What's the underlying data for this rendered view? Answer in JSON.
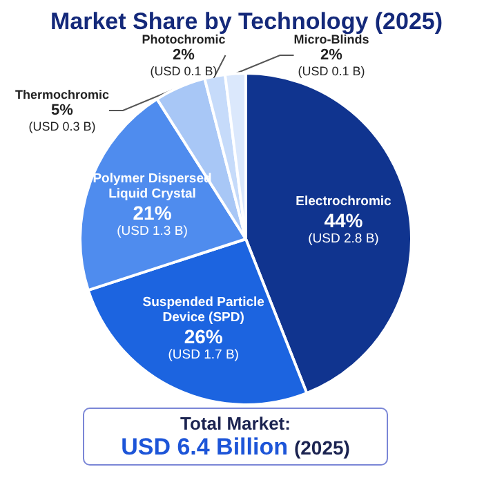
{
  "chart_data": {
    "type": "pie",
    "title": "Market Share by Technology (2025)",
    "categories": [
      "Electrochromic",
      "Suspended Particle Device (SPD)",
      "Polymer Dispersed Liquid Crystal",
      "Thermochromic",
      "Photochromic",
      "Micro-Blinds"
    ],
    "values": [
      44,
      26,
      21,
      5,
      2,
      2
    ],
    "colors": [
      "#10348f",
      "#1c64e0",
      "#4f8cee",
      "#a8c7f6",
      "#c6dbfa",
      "#dbe8fc"
    ],
    "value_labels": [
      "44%\n(USD 2.8 B)",
      "26%\n(USD 1.7 B)",
      "21%\n(USD 1.3 B)",
      "5%\n(USD 0.3 B)",
      "2%\n(USD 0.1 B)",
      "2%\n(USD 0.1 B)"
    ],
    "annotations": [
      "Total Market:",
      "USD 6.4 Billion",
      "(2025)"
    ]
  }
}
